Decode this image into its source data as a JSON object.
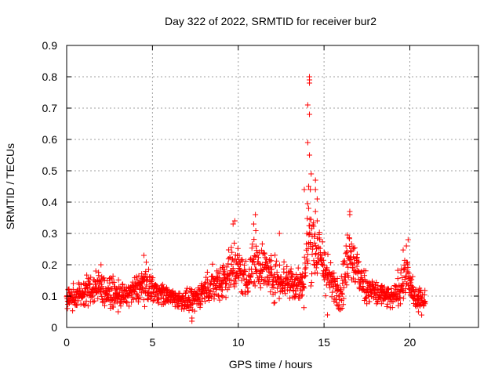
{
  "chart_data": {
    "type": "scatter",
    "title": "Day 322 of 2022, SRMTID for receiver bur2",
    "xlabel": "GPS time / hours",
    "ylabel": "SRMTID / TECUs",
    "xlim": [
      0,
      24
    ],
    "ylim": [
      0,
      0.9
    ],
    "xticks": [
      0,
      5,
      10,
      15,
      20
    ],
    "yticks": [
      0,
      0.1,
      0.2,
      0.3,
      0.4,
      0.5,
      0.6,
      0.7,
      0.8,
      0.9
    ],
    "grid": true,
    "marker": "plus",
    "color": "#ff0000",
    "series": [
      {
        "name": "SRMTID",
        "envelope_note": "approximate density profile read from the plot; points are dense along this profile",
        "profile": [
          {
            "x": 0.0,
            "base": 0.09,
            "spread": 0.03
          },
          {
            "x": 1.0,
            "base": 0.11,
            "spread": 0.04
          },
          {
            "x": 1.8,
            "base": 0.13,
            "spread": 0.05
          },
          {
            "x": 2.5,
            "base": 0.11,
            "spread": 0.04
          },
          {
            "x": 3.5,
            "base": 0.1,
            "spread": 0.03
          },
          {
            "x": 4.5,
            "base": 0.14,
            "spread": 0.05
          },
          {
            "x": 5.5,
            "base": 0.11,
            "spread": 0.03
          },
          {
            "x": 6.5,
            "base": 0.09,
            "spread": 0.025
          },
          {
            "x": 7.3,
            "base": 0.08,
            "spread": 0.03
          },
          {
            "x": 8.0,
            "base": 0.12,
            "spread": 0.04
          },
          {
            "x": 9.0,
            "base": 0.15,
            "spread": 0.06
          },
          {
            "x": 9.8,
            "base": 0.2,
            "spread": 0.08
          },
          {
            "x": 10.5,
            "base": 0.15,
            "spread": 0.05
          },
          {
            "x": 11.0,
            "base": 0.22,
            "spread": 0.08
          },
          {
            "x": 12.0,
            "base": 0.16,
            "spread": 0.06
          },
          {
            "x": 13.0,
            "base": 0.15,
            "spread": 0.06
          },
          {
            "x": 13.8,
            "base": 0.13,
            "spread": 0.05
          },
          {
            "x": 14.1,
            "base": 0.3,
            "spread": 0.12
          },
          {
            "x": 14.8,
            "base": 0.22,
            "spread": 0.08
          },
          {
            "x": 15.5,
            "base": 0.13,
            "spread": 0.05
          },
          {
            "x": 16.0,
            "base": 0.12,
            "spread": 0.06
          },
          {
            "x": 16.5,
            "base": 0.25,
            "spread": 0.08
          },
          {
            "x": 17.2,
            "base": 0.14,
            "spread": 0.05
          },
          {
            "x": 18.0,
            "base": 0.11,
            "spread": 0.04
          },
          {
            "x": 19.0,
            "base": 0.09,
            "spread": 0.03
          },
          {
            "x": 19.8,
            "base": 0.17,
            "spread": 0.07
          },
          {
            "x": 20.3,
            "base": 0.09,
            "spread": 0.03
          },
          {
            "x": 20.9,
            "base": 0.09,
            "spread": 0.03
          }
        ],
        "notable_points": [
          [
            14.15,
            0.8
          ],
          [
            14.15,
            0.79
          ],
          [
            14.15,
            0.78
          ],
          [
            14.05,
            0.71
          ],
          [
            14.15,
            0.68
          ],
          [
            14.05,
            0.59
          ],
          [
            14.15,
            0.55
          ],
          [
            14.25,
            0.49
          ],
          [
            14.1,
            0.45
          ],
          [
            14.2,
            0.44
          ],
          [
            14.5,
            0.47
          ],
          [
            14.5,
            0.44
          ],
          [
            13.85,
            0.44
          ],
          [
            14.6,
            0.41
          ],
          [
            14.1,
            0.38
          ],
          [
            14.5,
            0.37
          ],
          [
            14.6,
            0.34
          ],
          [
            16.5,
            0.37
          ],
          [
            16.5,
            0.36
          ],
          [
            11.0,
            0.36
          ],
          [
            9.8,
            0.34
          ],
          [
            9.7,
            0.33
          ],
          [
            10.9,
            0.33
          ],
          [
            12.4,
            0.3
          ],
          [
            4.5,
            0.23
          ],
          [
            7.3,
            0.03
          ],
          [
            7.3,
            0.02
          ],
          [
            15.2,
            0.04
          ],
          [
            19.9,
            0.28
          ],
          [
            19.8,
            0.26
          ],
          [
            1.7,
            0.18
          ],
          [
            2.0,
            0.2
          ],
          [
            0.1,
            0.12
          ],
          [
            20.5,
            0.05
          ],
          [
            3.0,
            0.05
          ]
        ],
        "xmin": 0.0,
        "xmax": 20.9
      }
    ]
  }
}
